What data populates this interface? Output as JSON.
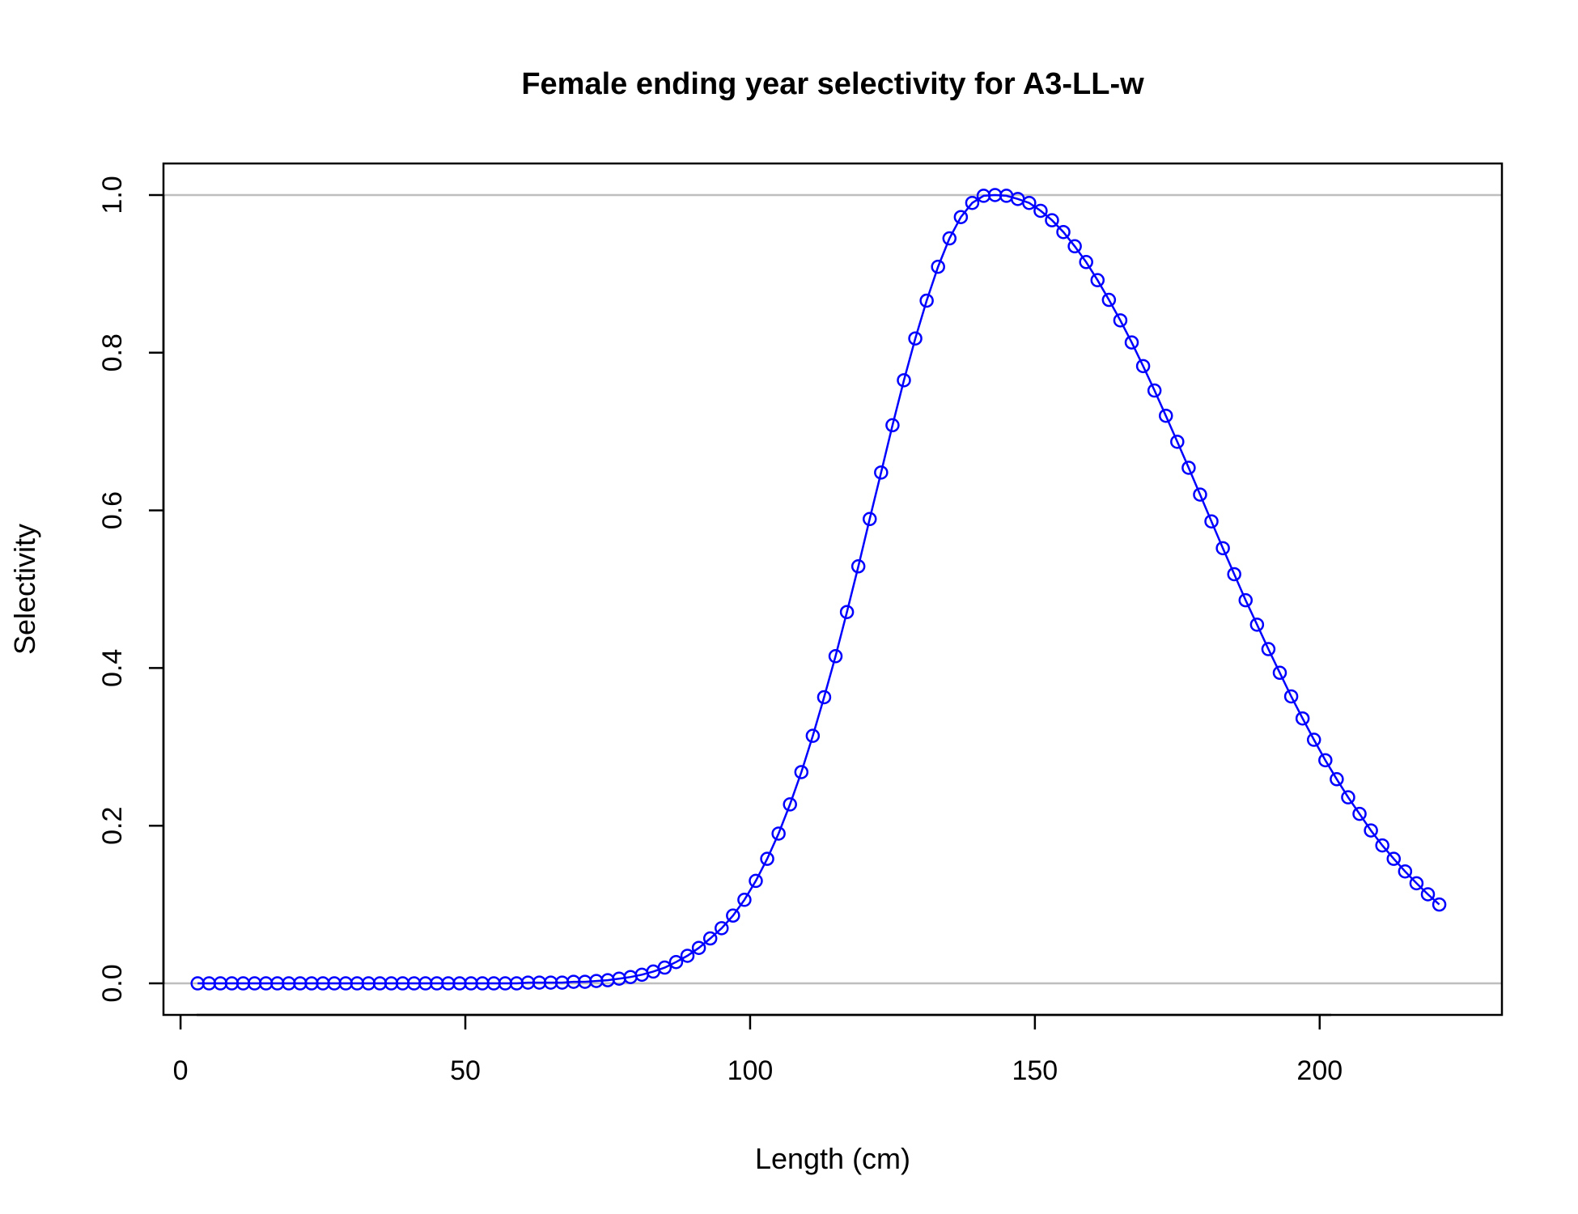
{
  "chart_data": {
    "type": "line",
    "title": "Female ending year selectivity for A3-LL-w",
    "xlabel": "Length (cm)",
    "ylabel": "Selectivity",
    "xlim": [
      -3,
      232
    ],
    "ylim": [
      -0.04,
      1.04
    ],
    "x_ticks": [
      0,
      50,
      100,
      150,
      200
    ],
    "x_tick_labels": [
      "0",
      "50",
      "100",
      "150",
      "200"
    ],
    "y_ticks": [
      0,
      0.2,
      0.4,
      0.6,
      0.8,
      1.0
    ],
    "y_tick_labels": [
      "0.0",
      "0.2",
      "0.4",
      "0.6",
      "0.8",
      "1.0"
    ],
    "reference_lines": [
      0,
      1
    ],
    "grid": false,
    "legend": "none",
    "series": [
      {
        "line_color": "#0000ff",
        "marker": "open-circle",
        "x": [
          3,
          5,
          7,
          9,
          11,
          13,
          15,
          17,
          19,
          21,
          23,
          25,
          27,
          29,
          31,
          33,
          35,
          37,
          39,
          41,
          43,
          45,
          47,
          49,
          51,
          53,
          55,
          57,
          59,
          61,
          63,
          65,
          67,
          69,
          71,
          73,
          75,
          77,
          79,
          81,
          83,
          85,
          87,
          89,
          91,
          93,
          95,
          97,
          99,
          101,
          103,
          105,
          107,
          109,
          111,
          113,
          115,
          117,
          119,
          121,
          123,
          125,
          127,
          129,
          131,
          133,
          135,
          137,
          139,
          141,
          143,
          145,
          147,
          149,
          151,
          153,
          155,
          157,
          159,
          161,
          163,
          165,
          167,
          169,
          171,
          173,
          175,
          177,
          179,
          181,
          183,
          185,
          187,
          189,
          191,
          193,
          195,
          197,
          199,
          201,
          203,
          205,
          207,
          209,
          211,
          213,
          215,
          217,
          219,
          221
        ],
        "y": [
          0,
          0,
          0,
          0,
          0,
          0,
          0,
          0,
          0,
          0,
          0,
          0,
          0,
          0,
          0,
          0,
          0,
          0,
          0,
          0,
          0,
          0,
          0,
          0,
          0,
          0,
          0,
          0,
          0,
          0.001,
          0.001,
          0.001,
          0.001,
          0.002,
          0.002,
          0.003,
          0.004,
          0.006,
          0.008,
          0.011,
          0.015,
          0.02,
          0.027,
          0.035,
          0.045,
          0.057,
          0.07,
          0.086,
          0.106,
          0.13,
          0.158,
          0.19,
          0.227,
          0.268,
          0.314,
          0.363,
          0.415,
          0.471,
          0.529,
          0.589,
          0.648,
          0.708,
          0.765,
          0.818,
          0.866,
          0.909,
          0.945,
          0.972,
          0.99,
          0.999,
          1.0,
          0.999,
          0.995,
          0.99,
          0.98,
          0.968,
          0.953,
          0.935,
          0.915,
          0.892,
          0.867,
          0.841,
          0.813,
          0.783,
          0.752,
          0.72,
          0.687,
          0.654,
          0.62,
          0.586,
          0.552,
          0.519,
          0.486,
          0.455,
          0.424,
          0.394,
          0.364,
          0.336,
          0.309,
          0.283,
          0.259,
          0.236,
          0.215,
          0.194,
          0.175,
          0.158,
          0.142,
          0.127,
          0.113,
          0.1
        ]
      }
    ]
  }
}
